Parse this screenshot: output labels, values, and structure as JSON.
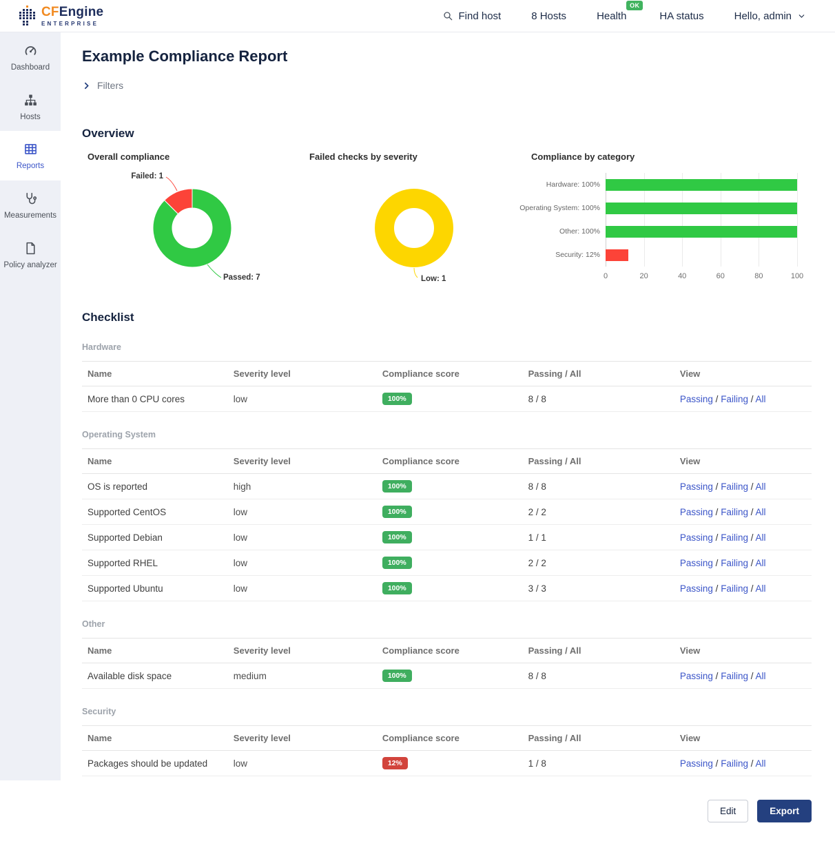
{
  "header": {
    "brand": {
      "cf": "CF",
      "engine": "Engine",
      "enterprise": "ENTERPRISE"
    },
    "find_host": "Find host",
    "hosts_label": "8 Hosts",
    "health_label": "Health",
    "health_badge": "OK",
    "ha_label": "HA status",
    "user_label": "Hello, admin"
  },
  "sidebar": {
    "items": [
      {
        "label": "Dashboard",
        "icon": "dashboard-icon",
        "active": false
      },
      {
        "label": "Hosts",
        "icon": "hosts-icon",
        "active": false
      },
      {
        "label": "Reports",
        "icon": "reports-icon",
        "active": true
      },
      {
        "label": "Measurements",
        "icon": "measurements-icon",
        "active": false
      },
      {
        "label": "Policy analyzer",
        "icon": "policy-analyzer-icon",
        "active": false
      }
    ]
  },
  "page": {
    "title": "Example Compliance Report",
    "filters_label": "Filters"
  },
  "sections": {
    "overview": "Overview",
    "checklist": "Checklist"
  },
  "chart_data": [
    {
      "type": "pie",
      "donut": true,
      "title": "Overall compliance",
      "slices": [
        {
          "label": "Passed",
          "value": 7,
          "color": "#30c944",
          "callout": "Passed: 7"
        },
        {
          "label": "Failed",
          "value": 1,
          "color": "#fc4338",
          "callout": "Failed: 1"
        }
      ]
    },
    {
      "type": "pie",
      "donut": true,
      "title": "Failed checks by severity",
      "slices": [
        {
          "label": "Low",
          "value": 1,
          "color": "#fdd600",
          "callout": "Low: 1"
        }
      ]
    },
    {
      "type": "bar",
      "orientation": "horizontal",
      "title": "Compliance by category",
      "categories": [
        "Hardware",
        "Operating System",
        "Other",
        "Security"
      ],
      "values": [
        100,
        100,
        100,
        12
      ],
      "value_labels": [
        "Hardware: 100%",
        "Operating System: 100%",
        "Other: 100%",
        "Security: 12%"
      ],
      "colors": [
        "#30c944",
        "#30c944",
        "#30c944",
        "#fc4338"
      ],
      "xlim": [
        0,
        100
      ],
      "xticks": [
        0,
        20,
        40,
        60,
        80,
        100
      ],
      "grid": true,
      "legend": "none"
    }
  ],
  "checklist": {
    "columns": [
      "Name",
      "Severity level",
      "Compliance score",
      "Passing / All",
      "View"
    ],
    "view_links": [
      "Passing",
      "Failing",
      "All"
    ],
    "groups": [
      {
        "name": "Hardware",
        "rows": [
          {
            "name": "More than 0 CPU cores",
            "severity": "low",
            "score": "100%",
            "score_color": "green",
            "passing_all": "8 / 8"
          }
        ]
      },
      {
        "name": "Operating System",
        "rows": [
          {
            "name": "OS is reported",
            "severity": "high",
            "score": "100%",
            "score_color": "green",
            "passing_all": "8 / 8"
          },
          {
            "name": "Supported CentOS",
            "severity": "low",
            "score": "100%",
            "score_color": "green",
            "passing_all": "2 / 2"
          },
          {
            "name": "Supported Debian",
            "severity": "low",
            "score": "100%",
            "score_color": "green",
            "passing_all": "1 / 1"
          },
          {
            "name": "Supported RHEL",
            "severity": "low",
            "score": "100%",
            "score_color": "green",
            "passing_all": "2 / 2"
          },
          {
            "name": "Supported Ubuntu",
            "severity": "low",
            "score": "100%",
            "score_color": "green",
            "passing_all": "3 / 3"
          }
        ]
      },
      {
        "name": "Other",
        "rows": [
          {
            "name": "Available disk space",
            "severity": "medium",
            "score": "100%",
            "score_color": "green",
            "passing_all": "8 / 8"
          }
        ]
      },
      {
        "name": "Security",
        "rows": [
          {
            "name": "Packages should be updated",
            "severity": "low",
            "score": "12%",
            "score_color": "red",
            "passing_all": "1 / 8"
          }
        ]
      }
    ]
  },
  "footer": {
    "edit": "Edit",
    "export": "Export"
  },
  "colors": {
    "chart_green": "#30c944",
    "chart_red": "#fc4338",
    "chart_yellow": "#fdd600",
    "badge_green": "#3fae5f",
    "badge_red": "#d2443c",
    "link_blue": "#3b55c8",
    "navy": "#24407f",
    "brand_orange": "#f18a21",
    "brand_navy": "#1d2d5c",
    "ok_green": "#41b35f"
  }
}
